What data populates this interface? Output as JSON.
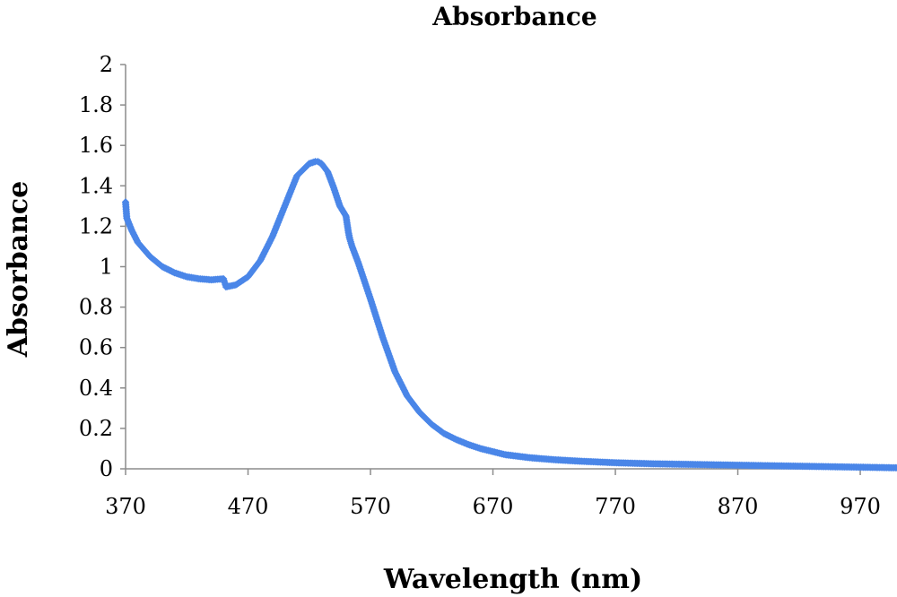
{
  "chart_data": {
    "type": "scatter",
    "title": "Absorbance",
    "xlabel": "Wavelength (nm)",
    "ylabel": "Absorbance",
    "xlim": [
      370,
      1000
    ],
    "ylim": [
      0,
      2
    ],
    "xticks": [
      370,
      470,
      570,
      670,
      770,
      870,
      970
    ],
    "yticks": [
      0,
      0.2,
      0.4,
      0.6,
      0.8,
      1,
      1.2,
      1.4,
      1.6,
      1.8,
      2
    ],
    "ytick_labels": [
      "0",
      "0.2",
      "0.4",
      "0.6",
      "0.8",
      "1",
      "1.2",
      "1.4",
      "1.6",
      "1.8",
      "2"
    ],
    "grid": false,
    "legend": "none",
    "marker_color": "#4a86e8",
    "series": [
      {
        "x": [
          370,
          371,
          375,
          380,
          390,
          400,
          410,
          420,
          430,
          440,
          450,
          451,
          452,
          460,
          470,
          480,
          490,
          500,
          510,
          520,
          525,
          527,
          530,
          535,
          540,
          545,
          550,
          551,
          552,
          553,
          555,
          560,
          570,
          580,
          590,
          600,
          610,
          620,
          630,
          640,
          650,
          660,
          670,
          680,
          700,
          720,
          740,
          770,
          800,
          850,
          900,
          950,
          1000
        ],
        "y": [
          1.32,
          1.24,
          1.18,
          1.12,
          1.05,
          1.0,
          0.97,
          0.95,
          0.94,
          0.935,
          0.94,
          0.92,
          0.9,
          0.91,
          0.95,
          1.03,
          1.15,
          1.3,
          1.45,
          1.51,
          1.52,
          1.52,
          1.51,
          1.47,
          1.39,
          1.3,
          1.25,
          1.21,
          1.17,
          1.14,
          1.1,
          1.02,
          0.84,
          0.65,
          0.48,
          0.36,
          0.28,
          0.22,
          0.175,
          0.145,
          0.12,
          0.1,
          0.085,
          0.07,
          0.055,
          0.045,
          0.038,
          0.03,
          0.025,
          0.02,
          0.015,
          0.01,
          0.005
        ]
      }
    ]
  }
}
